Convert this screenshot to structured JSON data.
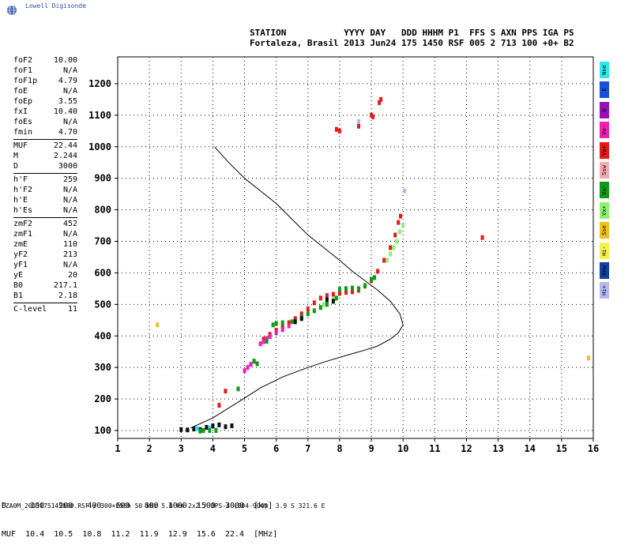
{
  "app": {
    "logo_text": "Lowell Digisonde"
  },
  "header": {
    "line1": "STATION           YYYY DAY   DDD HHHM P1  FFS S AXN PPS IGA PS",
    "line2": "Fortaleza, Brasil 2013 Jun24 175 1450 RSF 005 2 713 100 +0+ B2"
  },
  "params": {
    "group1": [
      {
        "name": "foF2",
        "value": "10.00"
      },
      {
        "name": "foF1",
        "value": "N/A"
      },
      {
        "name": "foF1p",
        "value": "4.79"
      },
      {
        "name": "foE",
        "value": "N/A"
      },
      {
        "name": "foEp",
        "value": "3.55"
      },
      {
        "name": "fxI",
        "value": "10.40"
      },
      {
        "name": "foEs",
        "value": "N/A"
      },
      {
        "name": "fmin",
        "value": "4.70"
      }
    ],
    "group2": [
      {
        "name": "MUF",
        "value": "22.44"
      },
      {
        "name": "M",
        "value": "2.244"
      },
      {
        "name": "D",
        "value": "3000"
      }
    ],
    "group3": [
      {
        "name": "h'F",
        "value": "259"
      },
      {
        "name": "h'F2",
        "value": "N/A"
      },
      {
        "name": "h'E",
        "value": "N/A"
      },
      {
        "name": "h'Es",
        "value": "N/A"
      }
    ],
    "group4": [
      {
        "name": "zmF2",
        "value": "452"
      },
      {
        "name": "zmF1",
        "value": "N/A"
      },
      {
        "name": "zmE",
        "value": "110"
      },
      {
        "name": "yF2",
        "value": "213"
      },
      {
        "name": "yF1",
        "value": "N/A"
      },
      {
        "name": "yE",
        "value": "20"
      },
      {
        "name": "B0",
        "value": "217.1"
      },
      {
        "name": "B1",
        "value": "2.18"
      }
    ],
    "group5": [
      {
        "name": "C-level",
        "value": "11"
      }
    ]
  },
  "legend": [
    {
      "label": "Nne",
      "color": "#2ee8f0"
    },
    {
      "label": "E",
      "color": "#1a4fd8"
    },
    {
      "label": "W",
      "color": "#9a10b8"
    },
    {
      "label": "Vo-",
      "color": "#f020b0"
    },
    {
      "label": "Vo+",
      "color": "#e81818"
    },
    {
      "label": "Ssw",
      "color": "#f4aab0"
    },
    {
      "label": "Vx-",
      "color": "#109a18"
    },
    {
      "label": "Vx+",
      "color": "#8ef070"
    },
    {
      "label": "Sse",
      "color": "#f0c020"
    },
    {
      "label": "Hi-",
      "color": "#f4f050"
    },
    {
      "label": "Nnw",
      "color": "#1040a0"
    },
    {
      "label": "Hi+",
      "color": "#b4b8f0"
    }
  ],
  "bottom_table": {
    "row1": "D     100   200   400   600   800  1000  1500  3000  [km]",
    "row2": "MUF  10.4  10.5  10.8  11.2  11.9  12.9  15.6  22.4  [MHz]"
  },
  "footer": "FZA0M_2013175145000.RSF / 300×256h 50 kHz 5.0 km 2x2 / DPS-4 (904-904)  3.9 S 321.6 E",
  "chart_data": {
    "type": "scatter",
    "xlim": [
      1,
      16
    ],
    "ylim": [
      75,
      1285
    ],
    "x_ticks": [
      1,
      2,
      3,
      4,
      5,
      6,
      7,
      8,
      9,
      10,
      11,
      12,
      13,
      14,
      15,
      16
    ],
    "y_ticks": [
      100,
      200,
      300,
      400,
      500,
      600,
      700,
      800,
      900,
      1000,
      1100,
      1200
    ],
    "grid": true,
    "profile": {
      "color": "#000000",
      "points": [
        [
          3.3,
          108
        ],
        [
          4,
          140
        ],
        [
          4.8,
          190
        ],
        [
          5.5,
          235
        ],
        [
          6.2,
          270
        ],
        [
          7,
          300
        ],
        [
          7.6,
          320
        ],
        [
          8.2,
          338
        ],
        [
          8.8,
          355
        ],
        [
          9.2,
          368
        ],
        [
          9.6,
          390
        ],
        [
          9.85,
          410
        ],
        [
          10,
          435
        ],
        [
          9.9,
          470
        ],
        [
          9.6,
          510
        ],
        [
          9.2,
          545
        ],
        [
          8.8,
          575
        ],
        [
          8.4,
          605
        ],
        [
          8,
          640
        ],
        [
          7.5,
          680
        ],
        [
          7,
          720
        ],
        [
          6.5,
          770
        ],
        [
          6,
          820
        ],
        [
          5.5,
          860
        ],
        [
          5,
          900
        ],
        [
          4.5,
          950
        ],
        [
          4.05,
          1000
        ]
      ]
    },
    "traces": [
      {
        "color": "#e81818",
        "points": [
          [
            5.6,
            390
          ],
          [
            5.8,
            405
          ],
          [
            6,
            418
          ],
          [
            6.2,
            430
          ],
          [
            6.4,
            442
          ],
          [
            6.6,
            455
          ],
          [
            6.8,
            470
          ],
          [
            7,
            485
          ],
          [
            7.2,
            505
          ],
          [
            7.4,
            520
          ],
          [
            7.6,
            528
          ],
          [
            7.8,
            532
          ],
          [
            8,
            535
          ],
          [
            8.2,
            538
          ],
          [
            8.4,
            540
          ],
          [
            8.6,
            545
          ],
          [
            8.8,
            558
          ],
          [
            9,
            575
          ],
          [
            9.2,
            605
          ],
          [
            9.4,
            640
          ],
          [
            9.6,
            680
          ],
          [
            9.75,
            720
          ],
          [
            9.85,
            760
          ],
          [
            9.92,
            780
          ]
        ]
      },
      {
        "color": "#f020b0",
        "points": [
          [
            5,
            290
          ],
          [
            5.1,
            300
          ],
          [
            5.2,
            310
          ],
          [
            5.3,
            320
          ],
          [
            5.5,
            375
          ],
          [
            5.6,
            382
          ],
          [
            5.7,
            392
          ],
          [
            5.8,
            398
          ],
          [
            6,
            410
          ],
          [
            6.2,
            420
          ],
          [
            6.4,
            432
          ]
        ]
      },
      {
        "color": "#109a18",
        "points": [
          [
            5.9,
            435
          ],
          [
            6,
            440
          ],
          [
            6.2,
            442
          ],
          [
            6.5,
            445
          ],
          [
            6.8,
            460
          ],
          [
            7,
            470
          ],
          [
            7.2,
            480
          ],
          [
            7.4,
            490
          ],
          [
            7.6,
            500
          ],
          [
            7.9,
            520
          ],
          [
            8,
            548
          ],
          [
            8.2,
            550
          ],
          [
            8.4,
            552
          ],
          [
            8.6,
            550
          ],
          [
            8.8,
            560
          ],
          [
            9,
            580
          ],
          [
            9.1,
            585
          ],
          [
            5.3,
            320
          ],
          [
            5.4,
            312
          ],
          [
            4.8,
            232
          ],
          [
            5.7,
            383
          ]
        ]
      },
      {
        "color": "#8ef070",
        "points": [
          [
            9.5,
            640
          ],
          [
            9.6,
            660
          ],
          [
            9.7,
            680
          ],
          [
            9.8,
            700
          ],
          [
            9.9,
            730
          ],
          [
            10,
            750
          ],
          [
            7.5,
            500
          ],
          [
            7.8,
            518
          ]
        ]
      },
      {
        "color": "#101010",
        "points": [
          [
            3.0,
            103
          ],
          [
            3.2,
            102
          ],
          [
            3.4,
            105
          ],
          [
            3.6,
            103
          ],
          [
            3.8,
            110
          ],
          [
            4,
            115
          ],
          [
            4.2,
            118
          ],
          [
            4.4,
            112
          ],
          [
            4.6,
            115
          ],
          [
            7.8,
            510
          ],
          [
            7.6,
            515
          ],
          [
            6.8,
            455
          ],
          [
            6.6,
            445
          ]
        ]
      },
      {
        "color": "#e81818",
        "points": [
          [
            7.9,
            1055
          ],
          [
            8,
            1050
          ],
          [
            8.6,
            1065
          ],
          [
            9,
            1100
          ],
          [
            9.05,
            1095
          ],
          [
            9.3,
            1150
          ],
          [
            9.25,
            1140
          ],
          [
            4.2,
            180
          ],
          [
            4.4,
            225
          ],
          [
            12.5,
            712
          ]
        ]
      },
      {
        "color": "#2ee8f0",
        "points": [
          [
            3.9,
            108
          ],
          [
            4.1,
            102
          ],
          [
            3.5,
            106
          ]
        ]
      },
      {
        "color": "#109a18",
        "points": [
          [
            3.7,
            100
          ],
          [
            3.9,
            100
          ],
          [
            4.1,
            100
          ],
          [
            3.6,
            98
          ]
        ]
      },
      {
        "color": "#f0c020",
        "points": [
          [
            2.25,
            435
          ],
          [
            15.85,
            330
          ]
        ]
      },
      {
        "color": "#b4b8f0",
        "points": [
          [
            8.6,
            1080
          ],
          [
            10.05,
            860
          ]
        ]
      }
    ]
  }
}
